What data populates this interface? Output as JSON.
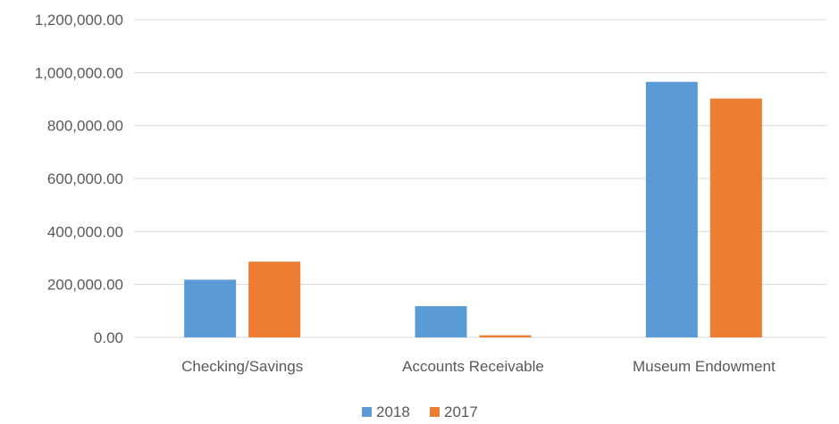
{
  "chart_data": {
    "type": "bar",
    "title": "",
    "xlabel": "",
    "ylabel": "",
    "categories": [
      "Checking/Savings",
      "Accounts Receivable",
      "Museum Endowment"
    ],
    "series": [
      {
        "name": "2018",
        "color": "#5b9bd5",
        "values": [
          218000,
          118000,
          965000
        ]
      },
      {
        "name": "2017",
        "color": "#ed7d31",
        "values": [
          286000,
          8000,
          902000
        ]
      }
    ],
    "ylim": [
      0,
      1200000
    ],
    "yticks": [
      "0.00",
      "200,000.00",
      "400,000.00",
      "600,000.00",
      "800,000.00",
      "1,000,000.00",
      "1,200,000.00"
    ],
    "ytick_values": [
      0,
      200000,
      400000,
      600000,
      800000,
      1000000,
      1200000
    ],
    "grid": true,
    "legend_position": "bottom"
  }
}
